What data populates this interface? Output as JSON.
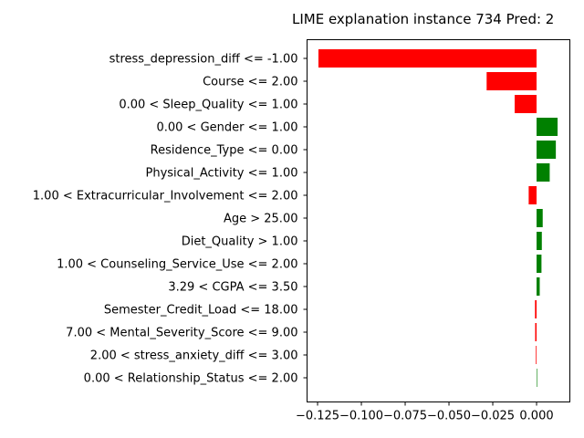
{
  "chart_data": {
    "type": "bar",
    "orientation": "horizontal",
    "title": "LIME explanation instance 734 Pred: 2",
    "xlabel": "",
    "ylabel": "",
    "xlim": [
      -0.131,
      0.019
    ],
    "x_ticks": [
      -0.125,
      -0.1,
      -0.075,
      -0.05,
      -0.025,
      0.0
    ],
    "x_tick_labels": [
      "−0.125",
      "−0.100",
      "−0.075",
      "−0.050",
      "−0.025",
      "0.000"
    ],
    "grid": false,
    "legend": "none",
    "positive_color": "#008000",
    "negative_color": "#ff0000",
    "categories": [
      "stress_depression_diff <= -1.00",
      "Course <= 2.00",
      "0.00 < Sleep_Quality <= 1.00",
      "0.00 < Gender <= 1.00",
      "Residence_Type <= 0.00",
      "Physical_Activity <= 1.00",
      "1.00 < Extracurricular_Involvement <= 2.00",
      "Age > 25.00",
      "Diet_Quality > 1.00",
      "1.00 < Counseling_Service_Use <= 2.00",
      "3.29 < CGPA <= 3.50",
      "Semester_Credit_Load <= 18.00",
      "7.00 < Mental_Severity_Score <= 9.00",
      "2.00 < stress_anxiety_diff <= 3.00",
      "0.00 < Relationship_Status <= 2.00"
    ],
    "values": [
      -0.1245,
      -0.0285,
      -0.0125,
      0.012,
      0.011,
      0.0075,
      -0.0045,
      0.0035,
      0.003,
      0.0028,
      0.0018,
      -0.0009,
      -0.0008,
      -0.0004,
      0.0
    ]
  }
}
